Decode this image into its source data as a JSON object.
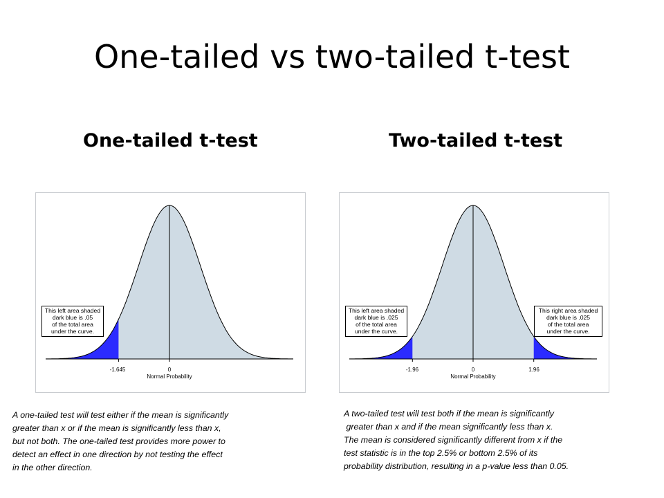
{
  "title": "One-tailed vs two-tailed t-test",
  "colors": {
    "curve_fill": "#cfdbe4",
    "tail_fill": "#2b2bff",
    "curve_line": "#000000"
  },
  "one_tailed": {
    "heading": "One-tailed t-test",
    "callout": [
      "This left area shaded",
      "dark blue is .05",
      "of the total area",
      "under the curve."
    ],
    "tick_labels": [
      "-1.645",
      "0"
    ],
    "axis_title": "Normal Probability",
    "description": [
      "A one-tailed test will test either if the mean is significantly",
      "greater than x or if the mean is significantly less than x,",
      "but not both. The one-tailed test provides more power to",
      "detect an effect in one direction by not testing the effect",
      "in the other direction."
    ]
  },
  "two_tailed": {
    "heading": "Two-tailed t-test",
    "callout_left": [
      "This left area shaded",
      "dark blue is .025",
      "of the total area",
      "under the curve."
    ],
    "callout_right": [
      "This right area shaded",
      "dark blue is .025",
      "of the total area",
      "under the curve."
    ],
    "tick_labels": [
      "-1.96",
      "0",
      "1.96"
    ],
    "axis_title": "Normal Probability",
    "description": [
      "A two-tailed test will test both if the mean is significantly",
      " greater than x and if the mean significantly less than x.",
      "The mean is considered significantly different from x if the",
      "test statistic is in the top 2.5% or bottom 2.5% of its",
      "probability distribution, resulting in a p-value less than 0.05."
    ]
  },
  "chart_data": [
    {
      "type": "area",
      "distribution": "normal",
      "x_range": [
        -4,
        4
      ],
      "shaded_region": {
        "from": -4,
        "to": -1.645,
        "area": 0.05
      },
      "marked_x": [
        -1.645,
        0
      ]
    },
    {
      "type": "area",
      "distribution": "normal",
      "x_range": [
        -4,
        4
      ],
      "shaded_regions": [
        {
          "from": -4,
          "to": -1.96,
          "area": 0.025
        },
        {
          "from": 1.96,
          "to": 4,
          "area": 0.025
        }
      ],
      "marked_x": [
        -1.96,
        0,
        1.96
      ]
    }
  ]
}
